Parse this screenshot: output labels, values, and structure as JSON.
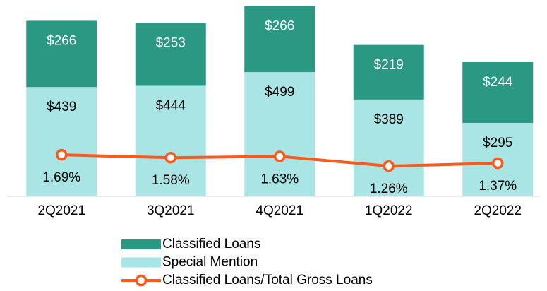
{
  "chart_data": {
    "type": "bar",
    "categories": [
      "2Q2021",
      "3Q2021",
      "4Q2021",
      "1Q2022",
      "2Q2022"
    ],
    "stacked": true,
    "series": [
      {
        "name": "Special Mention",
        "color": "#a9e5e5",
        "values": [
          439,
          444,
          499,
          389,
          295
        ],
        "value_labels": [
          "$439",
          "$444",
          "$499",
          "$389",
          "$295"
        ]
      },
      {
        "name": "Classified Loans",
        "color": "#2a9882",
        "values": [
          266,
          253,
          266,
          219,
          244
        ],
        "value_labels": [
          "$266",
          "$253",
          "$266",
          "$219",
          "$244"
        ]
      },
      {
        "name": "Classified Loans/Total Gross Loans",
        "type": "line",
        "axis": "y2",
        "color": "#fb5a1c",
        "values": [
          1.69,
          1.58,
          1.63,
          1.26,
          1.37
        ],
        "value_labels": [
          "1.69%",
          "1.58%",
          "1.63%",
          "1.26%",
          "1.37%"
        ]
      }
    ],
    "ylim": [
      0,
      780
    ],
    "y2lim": [
      0.1,
      7.53
    ]
  }
}
